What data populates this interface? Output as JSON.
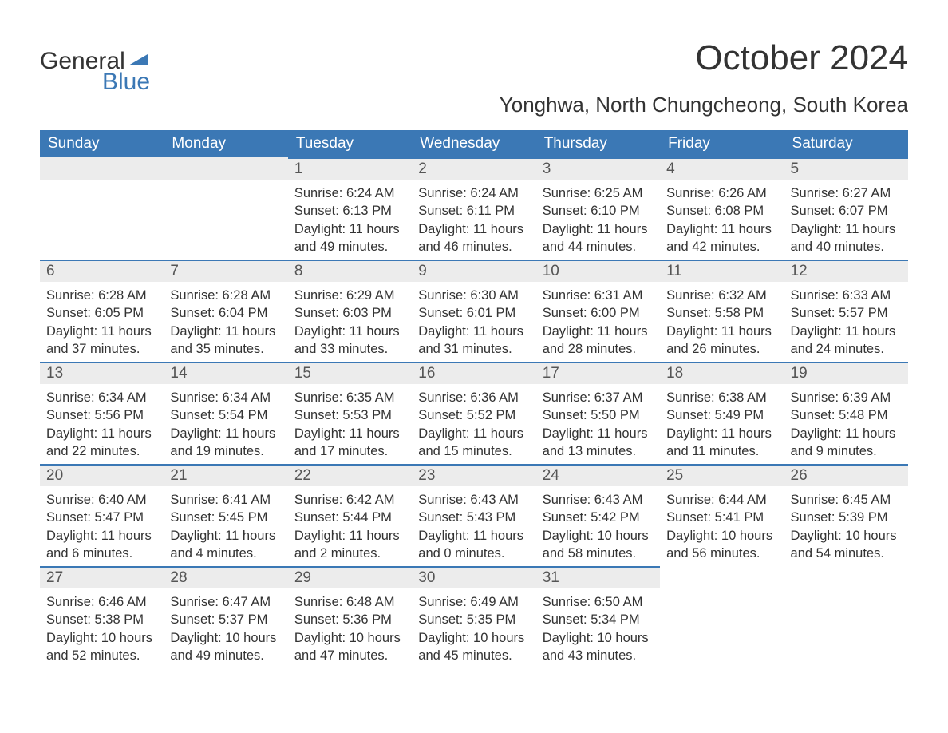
{
  "brand": {
    "line1": "General",
    "line2": "Blue"
  },
  "title": "October 2024",
  "location": "Yonghwa, North Chungcheong, South Korea",
  "colors": {
    "header_bg": "#3b78b5",
    "header_text": "#ffffff",
    "daynum_bg": "#ececec",
    "daynum_border": "#3b78b5",
    "body_text": "#333333",
    "page_bg": "#ffffff",
    "brand_accent": "#3b78b5"
  },
  "typography": {
    "title_fontsize": 44,
    "location_fontsize": 26,
    "header_fontsize": 19,
    "daynum_fontsize": 19,
    "body_fontsize": 16.5,
    "family": "Segoe UI, Arial, sans-serif"
  },
  "layout": {
    "columns": 7,
    "rows": 5,
    "start_day_index": 2
  },
  "weekdays": [
    "Sunday",
    "Monday",
    "Tuesday",
    "Wednesday",
    "Thursday",
    "Friday",
    "Saturday"
  ],
  "labels": {
    "sunrise": "Sunrise:",
    "sunset": "Sunset:",
    "daylight": "Daylight:"
  },
  "days": [
    {
      "n": 1,
      "sunrise": "6:24 AM",
      "sunset": "6:13 PM",
      "daylight": "11 hours and 49 minutes."
    },
    {
      "n": 2,
      "sunrise": "6:24 AM",
      "sunset": "6:11 PM",
      "daylight": "11 hours and 46 minutes."
    },
    {
      "n": 3,
      "sunrise": "6:25 AM",
      "sunset": "6:10 PM",
      "daylight": "11 hours and 44 minutes."
    },
    {
      "n": 4,
      "sunrise": "6:26 AM",
      "sunset": "6:08 PM",
      "daylight": "11 hours and 42 minutes."
    },
    {
      "n": 5,
      "sunrise": "6:27 AM",
      "sunset": "6:07 PM",
      "daylight": "11 hours and 40 minutes."
    },
    {
      "n": 6,
      "sunrise": "6:28 AM",
      "sunset": "6:05 PM",
      "daylight": "11 hours and 37 minutes."
    },
    {
      "n": 7,
      "sunrise": "6:28 AM",
      "sunset": "6:04 PM",
      "daylight": "11 hours and 35 minutes."
    },
    {
      "n": 8,
      "sunrise": "6:29 AM",
      "sunset": "6:03 PM",
      "daylight": "11 hours and 33 minutes."
    },
    {
      "n": 9,
      "sunrise": "6:30 AM",
      "sunset": "6:01 PM",
      "daylight": "11 hours and 31 minutes."
    },
    {
      "n": 10,
      "sunrise": "6:31 AM",
      "sunset": "6:00 PM",
      "daylight": "11 hours and 28 minutes."
    },
    {
      "n": 11,
      "sunrise": "6:32 AM",
      "sunset": "5:58 PM",
      "daylight": "11 hours and 26 minutes."
    },
    {
      "n": 12,
      "sunrise": "6:33 AM",
      "sunset": "5:57 PM",
      "daylight": "11 hours and 24 minutes."
    },
    {
      "n": 13,
      "sunrise": "6:34 AM",
      "sunset": "5:56 PM",
      "daylight": "11 hours and 22 minutes."
    },
    {
      "n": 14,
      "sunrise": "6:34 AM",
      "sunset": "5:54 PM",
      "daylight": "11 hours and 19 minutes."
    },
    {
      "n": 15,
      "sunrise": "6:35 AM",
      "sunset": "5:53 PM",
      "daylight": "11 hours and 17 minutes."
    },
    {
      "n": 16,
      "sunrise": "6:36 AM",
      "sunset": "5:52 PM",
      "daylight": "11 hours and 15 minutes."
    },
    {
      "n": 17,
      "sunrise": "6:37 AM",
      "sunset": "5:50 PM",
      "daylight": "11 hours and 13 minutes."
    },
    {
      "n": 18,
      "sunrise": "6:38 AM",
      "sunset": "5:49 PM",
      "daylight": "11 hours and 11 minutes."
    },
    {
      "n": 19,
      "sunrise": "6:39 AM",
      "sunset": "5:48 PM",
      "daylight": "11 hours and 9 minutes."
    },
    {
      "n": 20,
      "sunrise": "6:40 AM",
      "sunset": "5:47 PM",
      "daylight": "11 hours and 6 minutes."
    },
    {
      "n": 21,
      "sunrise": "6:41 AM",
      "sunset": "5:45 PM",
      "daylight": "11 hours and 4 minutes."
    },
    {
      "n": 22,
      "sunrise": "6:42 AM",
      "sunset": "5:44 PM",
      "daylight": "11 hours and 2 minutes."
    },
    {
      "n": 23,
      "sunrise": "6:43 AM",
      "sunset": "5:43 PM",
      "daylight": "11 hours and 0 minutes."
    },
    {
      "n": 24,
      "sunrise": "6:43 AM",
      "sunset": "5:42 PM",
      "daylight": "10 hours and 58 minutes."
    },
    {
      "n": 25,
      "sunrise": "6:44 AM",
      "sunset": "5:41 PM",
      "daylight": "10 hours and 56 minutes."
    },
    {
      "n": 26,
      "sunrise": "6:45 AM",
      "sunset": "5:39 PM",
      "daylight": "10 hours and 54 minutes."
    },
    {
      "n": 27,
      "sunrise": "6:46 AM",
      "sunset": "5:38 PM",
      "daylight": "10 hours and 52 minutes."
    },
    {
      "n": 28,
      "sunrise": "6:47 AM",
      "sunset": "5:37 PM",
      "daylight": "10 hours and 49 minutes."
    },
    {
      "n": 29,
      "sunrise": "6:48 AM",
      "sunset": "5:36 PM",
      "daylight": "10 hours and 47 minutes."
    },
    {
      "n": 30,
      "sunrise": "6:49 AM",
      "sunset": "5:35 PM",
      "daylight": "10 hours and 45 minutes."
    },
    {
      "n": 31,
      "sunrise": "6:50 AM",
      "sunset": "5:34 PM",
      "daylight": "10 hours and 43 minutes."
    }
  ]
}
